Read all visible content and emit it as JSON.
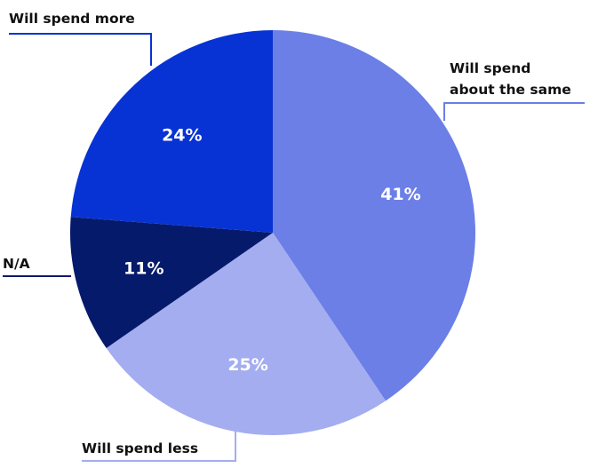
{
  "chart_data": {
    "type": "pie",
    "slices": [
      {
        "label": "Will spend about the same",
        "label_lines": [
          "Will spend",
          "about the same"
        ],
        "value": 41,
        "value_label": "41%",
        "color": "#6b7fe6"
      },
      {
        "label": "Will spend less",
        "label_lines": [
          "Will spend less"
        ],
        "value": 25,
        "value_label": "25%",
        "color": "#a3adf0"
      },
      {
        "label": "N/A",
        "label_lines": [
          "N/A"
        ],
        "value": 11,
        "value_label": "11%",
        "color": "#061a6b"
      },
      {
        "label": "Will spend more",
        "label_lines": [
          "Will spend more"
        ],
        "value": 24,
        "value_label": "24%",
        "color": "#0733d4"
      }
    ],
    "start_angle_deg": 0,
    "direction": "clockwise",
    "legend": "callout-labels"
  }
}
